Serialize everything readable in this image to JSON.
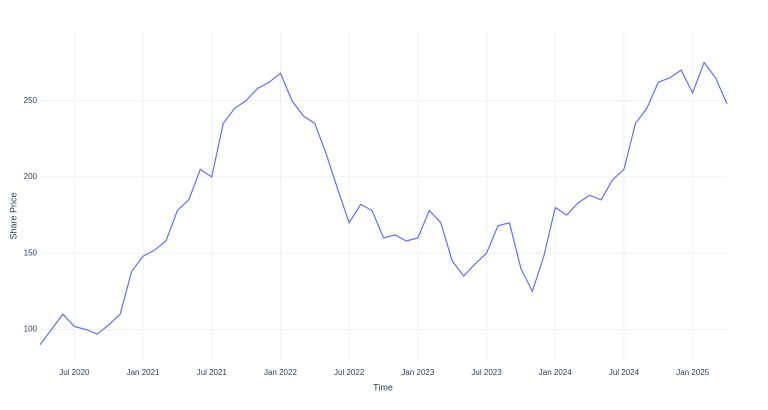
{
  "chart_data": {
    "type": "line",
    "x_label": "Time",
    "y_label": "Share Price",
    "x": [
      "2020-04",
      "2020-05",
      "2020-06",
      "2020-07",
      "2020-08",
      "2020-09",
      "2020-10",
      "2020-11",
      "2020-12",
      "2021-01",
      "2021-02",
      "2021-03",
      "2021-04",
      "2021-05",
      "2021-06",
      "2021-07",
      "2021-08",
      "2021-09",
      "2021-10",
      "2021-11",
      "2021-12",
      "2022-01",
      "2022-02",
      "2022-03",
      "2022-04",
      "2022-05",
      "2022-06",
      "2022-07",
      "2022-08",
      "2022-09",
      "2022-10",
      "2022-11",
      "2022-12",
      "2023-01",
      "2023-02",
      "2023-03",
      "2023-04",
      "2023-05",
      "2023-06",
      "2023-07",
      "2023-08",
      "2023-09",
      "2023-10",
      "2023-11",
      "2023-12",
      "2024-01",
      "2024-02",
      "2024-03",
      "2024-04",
      "2024-05",
      "2024-06",
      "2024-07",
      "2024-08",
      "2024-09",
      "2024-10",
      "2024-11",
      "2024-12",
      "2025-01",
      "2025-02",
      "2025-03",
      "2025-04"
    ],
    "series": [
      {
        "color": "#636efa",
        "values": [
          90,
          100,
          110,
          102,
          100,
          97,
          103,
          110,
          138,
          148,
          152,
          158,
          178,
          185,
          205,
          200,
          235,
          245,
          250,
          258,
          262,
          268,
          250,
          240,
          235,
          215,
          192,
          170,
          182,
          178,
          160,
          162,
          158,
          160,
          178,
          170,
          145,
          135,
          143,
          150,
          168,
          170,
          140,
          125,
          148,
          180,
          175,
          183,
          188,
          185,
          198,
          205,
          235,
          245,
          262,
          265,
          270,
          255,
          275,
          265,
          248
        ]
      }
    ],
    "xlim": [
      "2020-04",
      "2025-04"
    ],
    "xticks": [
      {
        "value": "2020-07",
        "label": "Jul 2020"
      },
      {
        "value": "2021-01",
        "label": "Jan 2021"
      },
      {
        "value": "2021-07",
        "label": "Jul 2021"
      },
      {
        "value": "2022-01",
        "label": "Jan 2022"
      },
      {
        "value": "2022-07",
        "label": "Jul 2022"
      },
      {
        "value": "2023-01",
        "label": "Jan 2023"
      },
      {
        "value": "2023-07",
        "label": "Jul 2023"
      },
      {
        "value": "2024-01",
        "label": "Jan 2024"
      },
      {
        "value": "2024-07",
        "label": "Jul 2024"
      },
      {
        "value": "2025-01",
        "label": "Jan 2025"
      }
    ],
    "ylim": [
      80,
      295
    ],
    "yticks": [
      100,
      150,
      200,
      250
    ],
    "grid": true
  }
}
